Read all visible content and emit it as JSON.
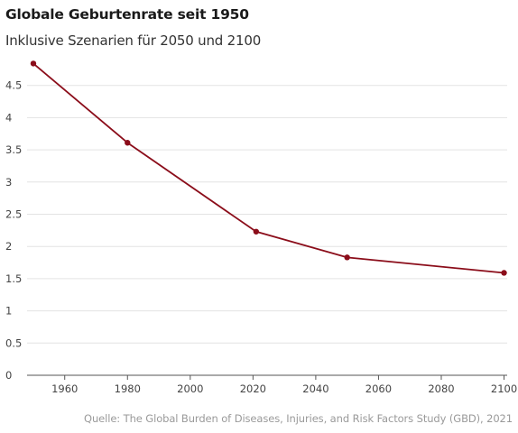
{
  "header": {
    "title": "Globale Geburtenrate seit 1950",
    "subtitle": "Inklusive Szenarien für 2050 und 2100"
  },
  "source": "Quelle: The Global Burden of Diseases, Injuries, and Risk Factors Study (GBD), 2021",
  "colors": {
    "line": "#8b0d1a",
    "grid": "#e3e3e3",
    "axis": "#555555"
  },
  "chart_data": {
    "type": "line",
    "title": "Globale Geburtenrate seit 1950",
    "subtitle": "Inklusive Szenarien für 2050 und 2100",
    "x": [
      1950,
      1980,
      2021,
      2050,
      2100
    ],
    "series": [
      {
        "values": [
          4.84,
          3.61,
          2.23,
          1.83,
          1.59
        ]
      }
    ],
    "xlim": [
      1948,
      2101
    ],
    "ylim": [
      0,
      5
    ],
    "x_ticks": [
      1960,
      1980,
      2000,
      2020,
      2040,
      2060,
      2080,
      2100
    ],
    "x_tick_labels": [
      "1960",
      "1980",
      "2000",
      "2020",
      "2040",
      "2060",
      "2080",
      "2100"
    ],
    "y_ticks": [
      0,
      0.5,
      1,
      1.5,
      2,
      2.5,
      3,
      3.5,
      4,
      4.5
    ],
    "y_tick_labels": [
      "0",
      "0.5",
      "1",
      "1.5",
      "2",
      "2.5",
      "3",
      "3.5",
      "4",
      "4.5"
    ],
    "grid": "horizontal",
    "legend": "none",
    "markers": true
  }
}
